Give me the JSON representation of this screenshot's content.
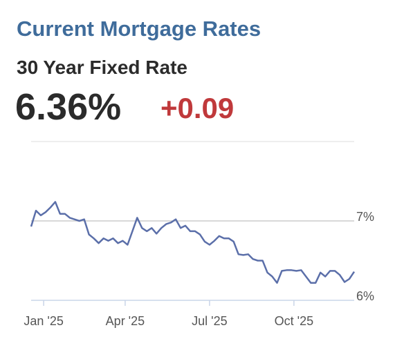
{
  "chart_data": {
    "type": "line",
    "title": "Current Mortgage Rates",
    "subtitle": "30 Year Fixed Rate",
    "annotations": [
      "6.36%",
      "+0.09"
    ],
    "color": "#5b6fa9",
    "grid": true,
    "values": [
      6.93,
      7.13,
      7.07,
      7.11,
      7.17,
      7.24,
      7.09,
      7.09,
      7.04,
      7.02,
      7.0,
      7.02,
      6.83,
      6.78,
      6.72,
      6.78,
      6.75,
      6.78,
      6.72,
      6.75,
      6.7,
      6.87,
      7.04,
      6.91,
      6.87,
      6.91,
      6.84,
      6.91,
      6.96,
      6.98,
      7.02,
      6.91,
      6.94,
      6.87,
      6.87,
      6.83,
      6.74,
      6.7,
      6.75,
      6.81,
      6.78,
      6.78,
      6.74,
      6.58,
      6.57,
      6.58,
      6.52,
      6.5,
      6.5,
      6.35,
      6.3,
      6.22,
      6.37,
      6.38,
      6.38,
      6.37,
      6.38,
      6.3,
      6.22,
      6.22,
      6.35,
      6.3,
      6.37,
      6.37,
      6.32,
      6.23,
      6.27,
      6.36
    ],
    "xlim": [
      0,
      67
    ],
    "xticks": [
      {
        "value": 2.6,
        "label": "Jan '25"
      },
      {
        "value": 19.5,
        "label": "Apr '25"
      },
      {
        "value": 37,
        "label": "Jul '25"
      },
      {
        "value": 54.5,
        "label": "Oct '25"
      }
    ],
    "ylim": [
      6,
      8
    ],
    "yticks": [
      {
        "value": 6,
        "label": "6%"
      },
      {
        "value": 7,
        "label": "7%"
      }
    ]
  }
}
